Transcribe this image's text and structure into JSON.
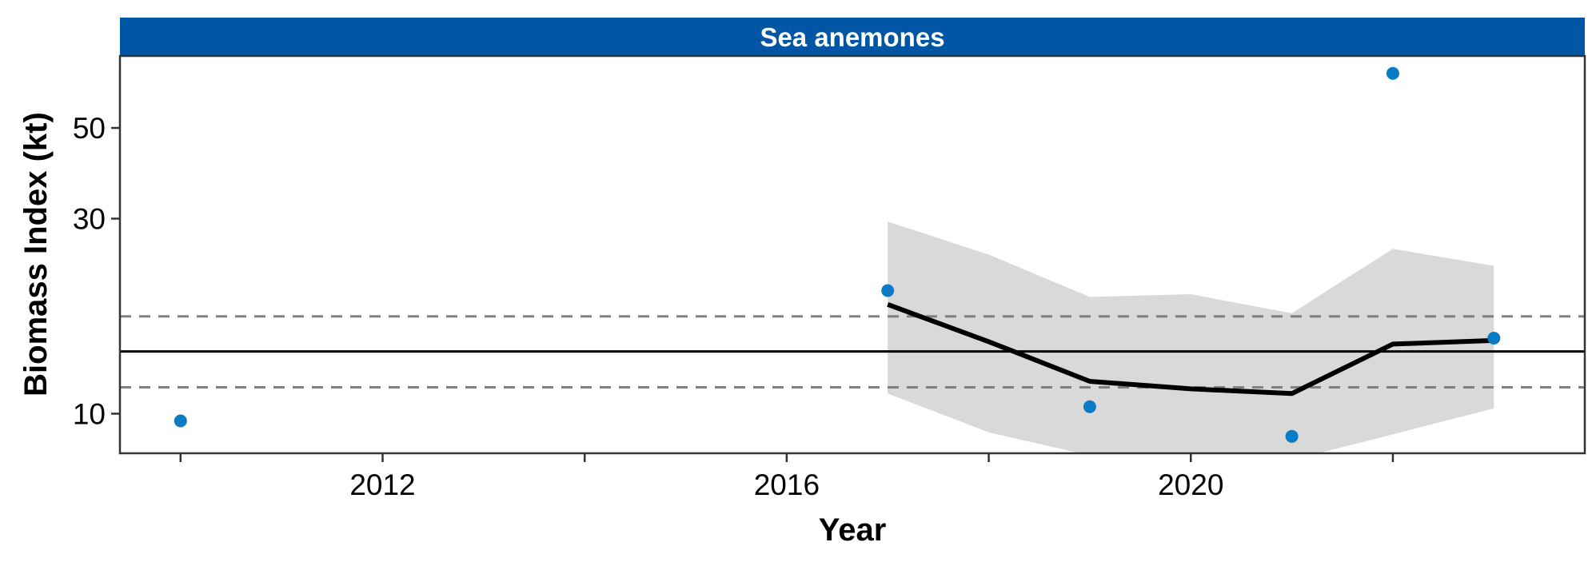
{
  "chart_data": {
    "type": "line",
    "title": "Sea anemones",
    "xlabel": "Year",
    "ylabel": "Biomass Index (kt)",
    "y_scale": "log",
    "xlim": [
      2009.4,
      2023.9
    ],
    "ylim": [
      8.0,
      75.0
    ],
    "grid": false,
    "x_ticks": [
      2012,
      2016,
      2020
    ],
    "x_minor_ticks": [
      2010,
      2014,
      2018,
      2022
    ],
    "y_ticks": [
      10,
      30,
      50
    ],
    "observed_points": [
      {
        "x": 2010,
        "y": 9.6
      },
      {
        "x": 2017,
        "y": 20.0
      },
      {
        "x": 2019,
        "y": 10.4
      },
      {
        "x": 2021,
        "y": 8.8
      },
      {
        "x": 2022,
        "y": 68.0
      },
      {
        "x": 2023,
        "y": 15.3
      }
    ],
    "fitted_line": {
      "x": [
        2017,
        2018,
        2019,
        2020,
        2021,
        2022,
        2023
      ],
      "y": [
        18.5,
        15.0,
        12.0,
        11.5,
        11.2,
        14.8,
        15.1
      ]
    },
    "confidence_band": {
      "x": [
        2017,
        2018,
        2019,
        2020,
        2021,
        2022,
        2023
      ],
      "lower": [
        11.2,
        9.0,
        7.9,
        7.45,
        7.7,
        8.9,
        10.3
      ],
      "upper": [
        29.5,
        24.5,
        19.3,
        19.6,
        17.6,
        25.3,
        23.0
      ]
    },
    "reference_line": 14.2,
    "reference_band": [
      11.6,
      17.3
    ],
    "colors": {
      "strip": "#0055A4",
      "points": "#0A7BC4",
      "fitted_line": "#000000",
      "band": "#D9D9D9",
      "reference_line": "#000000",
      "reference_dashed": "#808080"
    }
  }
}
